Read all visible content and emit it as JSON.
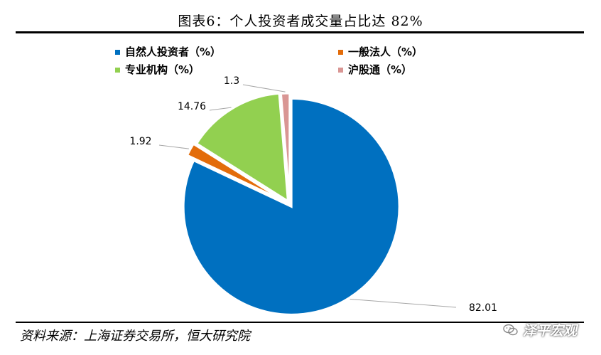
{
  "title": "图表6：个人投资者成交量占比达 82%",
  "source": "资料来源：上海证券交易所，恒大研究院",
  "watermark": "泽平宏观",
  "chart_data": {
    "type": "pie",
    "series": [
      {
        "name": "自然人投资者（%）",
        "value": 82.01,
        "label": "82.01",
        "color": "#0070C0"
      },
      {
        "name": "一般法人（%）",
        "value": 1.92,
        "label": "1.92",
        "color": "#E36C0A"
      },
      {
        "name": "专业机构（%）",
        "value": 14.76,
        "label": "14.76",
        "color": "#92D050"
      },
      {
        "name": "沪股通（%）",
        "value": 1.3,
        "label": "1.3",
        "color": "#D99694"
      }
    ],
    "legend": "top",
    "start_angle_deg": 0,
    "direction": "clockwise"
  }
}
